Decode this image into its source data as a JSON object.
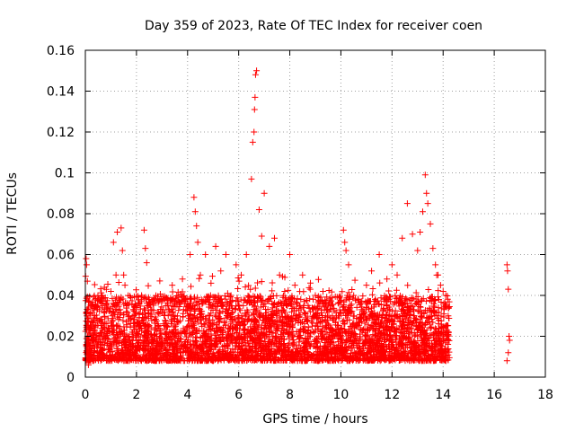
{
  "chart_data": {
    "type": "scatter",
    "title": "Day 359 of 2023, Rate Of TEC Index for receiver coen",
    "xlabel": "GPS time / hours",
    "ylabel": "ROTI / TECUs",
    "xlim": [
      0,
      18
    ],
    "ylim": [
      0,
      0.16
    ],
    "x_ticks": [
      0,
      2,
      4,
      6,
      8,
      10,
      12,
      14,
      16,
      18
    ],
    "y_ticks": [
      0,
      0.02,
      0.04,
      0.06,
      0.08,
      0.1,
      0.12,
      0.14,
      0.16
    ],
    "x_tick_labels": [
      "0",
      "2",
      "4",
      "6",
      "8",
      "10",
      "12",
      "14",
      "16",
      "18"
    ],
    "y_tick_labels": [
      "0",
      "0.02",
      "0.04",
      "0.06",
      "0.08",
      "0.1",
      "0.12",
      "0.14",
      "0.16"
    ],
    "grid": true,
    "marker": "+",
    "color": "#ff0000",
    "series": [
      {
        "x": [
          0.03,
          0.05,
          0.08,
          0.1,
          0.12,
          0.04,
          0.06,
          1.0,
          1.05,
          1.1,
          1.2,
          1.25,
          1.4,
          1.45,
          1.5,
          1.55,
          1.6,
          2.2,
          2.3,
          2.35,
          2.4,
          2.5,
          2.6,
          2.7,
          2.8,
          3.0,
          3.2,
          3.4,
          3.6,
          3.8,
          4.1,
          4.25,
          4.3,
          4.35,
          4.4,
          4.5,
          4.7,
          4.9,
          5.1,
          5.3,
          5.5,
          5.7,
          5.9,
          6.1,
          6.3,
          6.5,
          6.55,
          6.6,
          6.62,
          6.64,
          6.66,
          6.7,
          6.8,
          6.9,
          7.0,
          7.2,
          7.4,
          7.6,
          7.8,
          8.0,
          8.2,
          8.5,
          8.8,
          9.0,
          9.3,
          9.6,
          9.9,
          10.1,
          10.15,
          10.2,
          10.3,
          10.5,
          10.8,
          11.0,
          11.2,
          11.5,
          11.8,
          12.0,
          12.2,
          12.4,
          12.6,
          12.8,
          13.0,
          13.1,
          13.2,
          13.3,
          13.35,
          13.4,
          13.5,
          13.6,
          13.7,
          13.8,
          13.9,
          14.0,
          14.1,
          14.2,
          16.5,
          16.52,
          16.55,
          16.58,
          16.6,
          16.5,
          16.55
        ],
        "y": [
          0.058,
          0.055,
          0.047,
          0.02,
          0.006,
          0.015,
          0.03,
          0.042,
          0.03,
          0.066,
          0.05,
          0.071,
          0.073,
          0.062,
          0.05,
          0.045,
          0.035,
          0.04,
          0.072,
          0.063,
          0.056,
          0.038,
          0.033,
          0.028,
          0.02,
          0.032,
          0.025,
          0.045,
          0.03,
          0.048,
          0.06,
          0.088,
          0.081,
          0.074,
          0.066,
          0.05,
          0.06,
          0.04,
          0.064,
          0.052,
          0.06,
          0.04,
          0.055,
          0.05,
          0.06,
          0.097,
          0.115,
          0.12,
          0.131,
          0.137,
          0.148,
          0.15,
          0.082,
          0.069,
          0.09,
          0.064,
          0.068,
          0.05,
          0.042,
          0.06,
          0.045,
          0.05,
          0.043,
          0.04,
          0.042,
          0.035,
          0.03,
          0.072,
          0.066,
          0.062,
          0.055,
          0.04,
          0.033,
          0.045,
          0.052,
          0.06,
          0.048,
          0.055,
          0.05,
          0.068,
          0.085,
          0.07,
          0.062,
          0.071,
          0.081,
          0.099,
          0.09,
          0.085,
          0.075,
          0.063,
          0.055,
          0.05,
          0.045,
          0.042,
          0.04,
          0.03,
          0.055,
          0.052,
          0.043,
          0.02,
          0.018,
          0.008,
          0.012
        ],
        "band": {
          "x_range": [
            0,
            14.25
          ],
          "typical_y_range": [
            0.008,
            0.04
          ],
          "note_density": "dense"
        }
      }
    ]
  }
}
